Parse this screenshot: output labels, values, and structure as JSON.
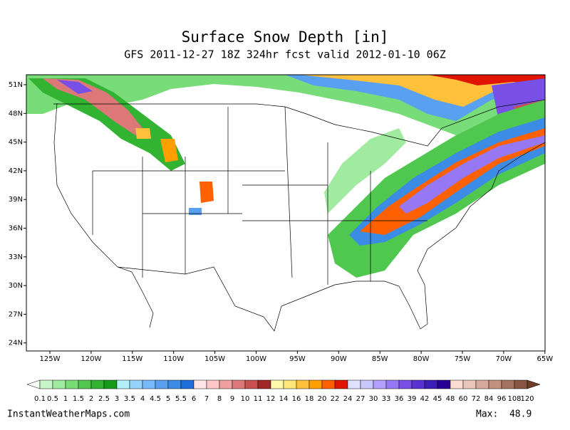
{
  "title": "Surface Snow Depth [in]",
  "subtitle": "GFS 2011-12-27 18Z 324hr fcst valid 2012-01-10 06Z",
  "lat_labels": [
    "51N",
    "48N",
    "45N",
    "42N",
    "39N",
    "36N",
    "33N",
    "30N",
    "27N",
    "24N"
  ],
  "lon_labels": [
    "125W",
    "120W",
    "115W",
    "110W",
    "105W",
    "100W",
    "95W",
    "90W",
    "85W",
    "80W",
    "75W",
    "70W",
    "65W"
  ],
  "colorbar": {
    "levels": [
      0.1,
      0.5,
      1,
      1.5,
      2,
      2.5,
      3,
      3.5,
      4,
      4.5,
      5,
      5.5,
      6,
      7,
      8,
      9,
      10,
      11,
      12,
      14,
      16,
      18,
      20,
      22,
      24,
      27,
      30,
      33,
      36,
      39,
      42,
      45,
      48,
      60,
      72,
      84,
      96,
      108,
      120
    ],
    "colors": [
      "#f4fff4",
      "#c8f5c8",
      "#a0eba0",
      "#78dc78",
      "#50c850",
      "#32b432",
      "#169b16",
      "#b4f0fa",
      "#96d2fa",
      "#78b9fa",
      "#5aa0f0",
      "#3c8ce6",
      "#1e6edc",
      "#ffe6e6",
      "#ffc8c8",
      "#f0a0a0",
      "#dc7878",
      "#c85050",
      "#a02828",
      "#fffaaa",
      "#ffe678",
      "#ffc03c",
      "#ffa000",
      "#ff6000",
      "#e11400",
      "#e1e1ff",
      "#c8c8ff",
      "#b4a0ff",
      "#9678f5",
      "#7850e6",
      "#5a32d2",
      "#3c1eb4",
      "#280096",
      "#fadcd2",
      "#eac6ba",
      "#d7aa9b",
      "#c3917d",
      "#a5735f",
      "#875541",
      "#6e3c28"
    ]
  },
  "footer": {
    "source": "InstantWeatherMaps.com",
    "max": "Max:  48.9"
  }
}
